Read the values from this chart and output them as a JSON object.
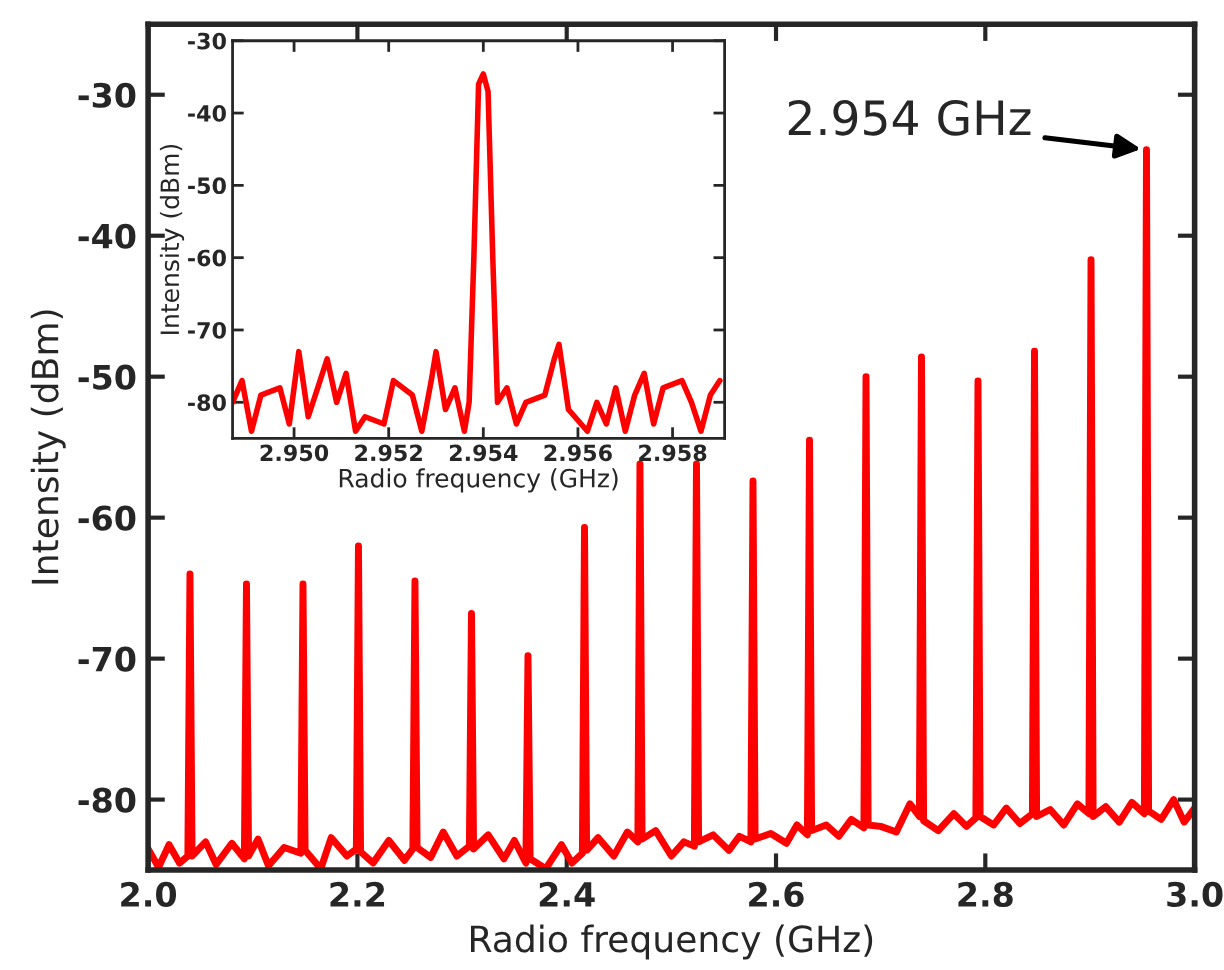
{
  "chart_data": [
    {
      "type": "line",
      "xlabel": "Radio frequency (GHz)",
      "ylabel": "Intensity (dBm)",
      "xlim": [
        2.0,
        3.0
      ],
      "ylim": [
        -85,
        -25
      ],
      "xticks": [
        {
          "value": 2.0,
          "label": "2.0"
        },
        2.2,
        2.4,
        2.6,
        2.8,
        {
          "value": 3.0,
          "label": "3.0"
        }
      ],
      "yticks": [
        -80,
        -70,
        -60,
        -50,
        -40,
        -30
      ],
      "grid": false,
      "legend": false,
      "marker": "none",
      "line_style": "solid",
      "annotations": [
        {
          "text": "2.954 GHz",
          "x": 2.954,
          "y": -33.9
        }
      ],
      "series": [
        {
          "color": "#ff0000",
          "x": [
            2.0,
            2.01,
            2.02,
            2.03,
            2.038,
            2.04,
            2.042,
            2.055,
            2.065,
            2.08,
            2.092,
            2.094,
            2.096,
            2.105,
            2.115,
            2.13,
            2.146,
            2.148,
            2.15,
            2.165,
            2.175,
            2.19,
            2.199,
            2.201,
            2.203,
            2.215,
            2.23,
            2.245,
            2.253,
            2.255,
            2.257,
            2.27,
            2.282,
            2.295,
            2.307,
            2.309,
            2.311,
            2.325,
            2.34,
            2.35,
            2.361,
            2.363,
            2.365,
            2.38,
            2.395,
            2.405,
            2.415,
            2.417,
            2.419,
            2.43,
            2.445,
            2.458,
            2.468,
            2.47,
            2.472,
            2.485,
            2.5,
            2.512,
            2.522,
            2.524,
            2.526,
            2.54,
            2.555,
            2.565,
            2.576,
            2.578,
            2.58,
            2.595,
            2.61,
            2.62,
            2.63,
            2.632,
            2.634,
            2.648,
            2.66,
            2.672,
            2.684,
            2.686,
            2.688,
            2.7,
            2.715,
            2.728,
            2.737,
            2.739,
            2.741,
            2.755,
            2.77,
            2.782,
            2.791,
            2.793,
            2.795,
            2.808,
            2.82,
            2.833,
            2.845,
            2.847,
            2.849,
            2.862,
            2.875,
            2.888,
            2.899,
            2.901,
            2.903,
            2.915,
            2.928,
            2.94,
            2.952,
            2.954,
            2.956,
            2.968,
            2.98,
            2.99,
            3.0
          ],
          "values": [
            -83.5,
            -84.8,
            -83.2,
            -84.5,
            -84,
            -64.0,
            -84,
            -83.0,
            -84.6,
            -83.1,
            -84.2,
            -64.7,
            -84,
            -82.8,
            -84.7,
            -83.4,
            -83.8,
            -64.7,
            -83.6,
            -84.9,
            -82.7,
            -84.0,
            -83.5,
            -62.0,
            -83.7,
            -84.5,
            -82.9,
            -84.3,
            -83.5,
            -64.5,
            -83.4,
            -84.1,
            -82.3,
            -84.0,
            -83.3,
            -66.8,
            -83.5,
            -82.5,
            -84.2,
            -82.9,
            -84.5,
            -69.8,
            -84.2,
            -84.9,
            -83.2,
            -84.5,
            -83.8,
            -60.7,
            -83.6,
            -82.7,
            -84.0,
            -82.3,
            -83.0,
            -56.2,
            -82.8,
            -82.2,
            -84.0,
            -83.0,
            -83.3,
            -56.2,
            -83.0,
            -82.5,
            -83.6,
            -82.6,
            -83.0,
            -57.4,
            -82.8,
            -82.4,
            -83.1,
            -81.8,
            -82.5,
            -54.5,
            -82.2,
            -81.8,
            -82.6,
            -81.4,
            -82.0,
            -50.0,
            -81.8,
            -81.9,
            -82.3,
            -80.3,
            -81.2,
            -48.6,
            -81.5,
            -82.2,
            -81.0,
            -81.9,
            -81.3,
            -50.3,
            -81.2,
            -81.8,
            -80.6,
            -81.7,
            -81.0,
            -48.2,
            -81.2,
            -80.7,
            -81.8,
            -80.3,
            -81.0,
            -41.7,
            -81.2,
            -80.5,
            -81.6,
            -80.2,
            -81.0,
            -33.9,
            -80.8,
            -81.4,
            -80.0,
            -81.6,
            -80.6
          ]
        }
      ]
    },
    {
      "type": "line",
      "xlabel": "Radio frequency (GHz)",
      "ylabel": "Intensity (dBm)",
      "xlim": [
        2.9487,
        2.9591
      ],
      "ylim": [
        -85,
        -30
      ],
      "xticks": [
        {
          "value": 2.95,
          "label": "2.950"
        },
        2.952,
        2.954,
        2.956,
        2.958
      ],
      "yticks": [
        -80,
        -70,
        -60,
        -50,
        -40,
        -30
      ],
      "grid": false,
      "legend": false,
      "marker": "none",
      "line_style": "solid",
      "series": [
        {
          "color": "#ff0000",
          "x": [
            2.9487,
            2.9489,
            2.9491,
            2.9493,
            2.9495,
            2.9497,
            2.9499,
            2.9501,
            2.9503,
            2.9505,
            2.9507,
            2.9509,
            2.9511,
            2.9513,
            2.9515,
            2.9517,
            2.9519,
            2.9521,
            2.9523,
            2.9525,
            2.9527,
            2.9529,
            2.953,
            2.9532,
            2.9534,
            2.9536,
            2.9537,
            2.9538,
            2.9539,
            2.954,
            2.9541,
            2.9542,
            2.9543,
            2.9545,
            2.9547,
            2.9549,
            2.9551,
            2.9553,
            2.9555,
            2.9556,
            2.9558,
            2.956,
            2.9562,
            2.9564,
            2.9566,
            2.9568,
            2.957,
            2.9572,
            2.9574,
            2.9576,
            2.9578,
            2.958,
            2.9582,
            2.9584,
            2.9586,
            2.9588,
            2.959
          ],
          "values": [
            -80,
            -77,
            -84,
            -79,
            null,
            -78,
            -83,
            -73,
            -82,
            null,
            -74,
            -80,
            -76,
            -84,
            -82,
            null,
            -83,
            -77,
            null,
            -79,
            -84,
            -77,
            -73,
            -81,
            -78,
            -84,
            -80,
            -60,
            -36,
            -34.6,
            -37,
            -60,
            -80,
            -78,
            -83,
            -80,
            null,
            -79,
            -74,
            -72,
            -81,
            null,
            -84,
            -80,
            -83,
            -78,
            -84,
            -79,
            -76,
            -83,
            -78,
            null,
            -77,
            -80,
            -84,
            -79,
            -77
          ]
        }
      ]
    }
  ]
}
